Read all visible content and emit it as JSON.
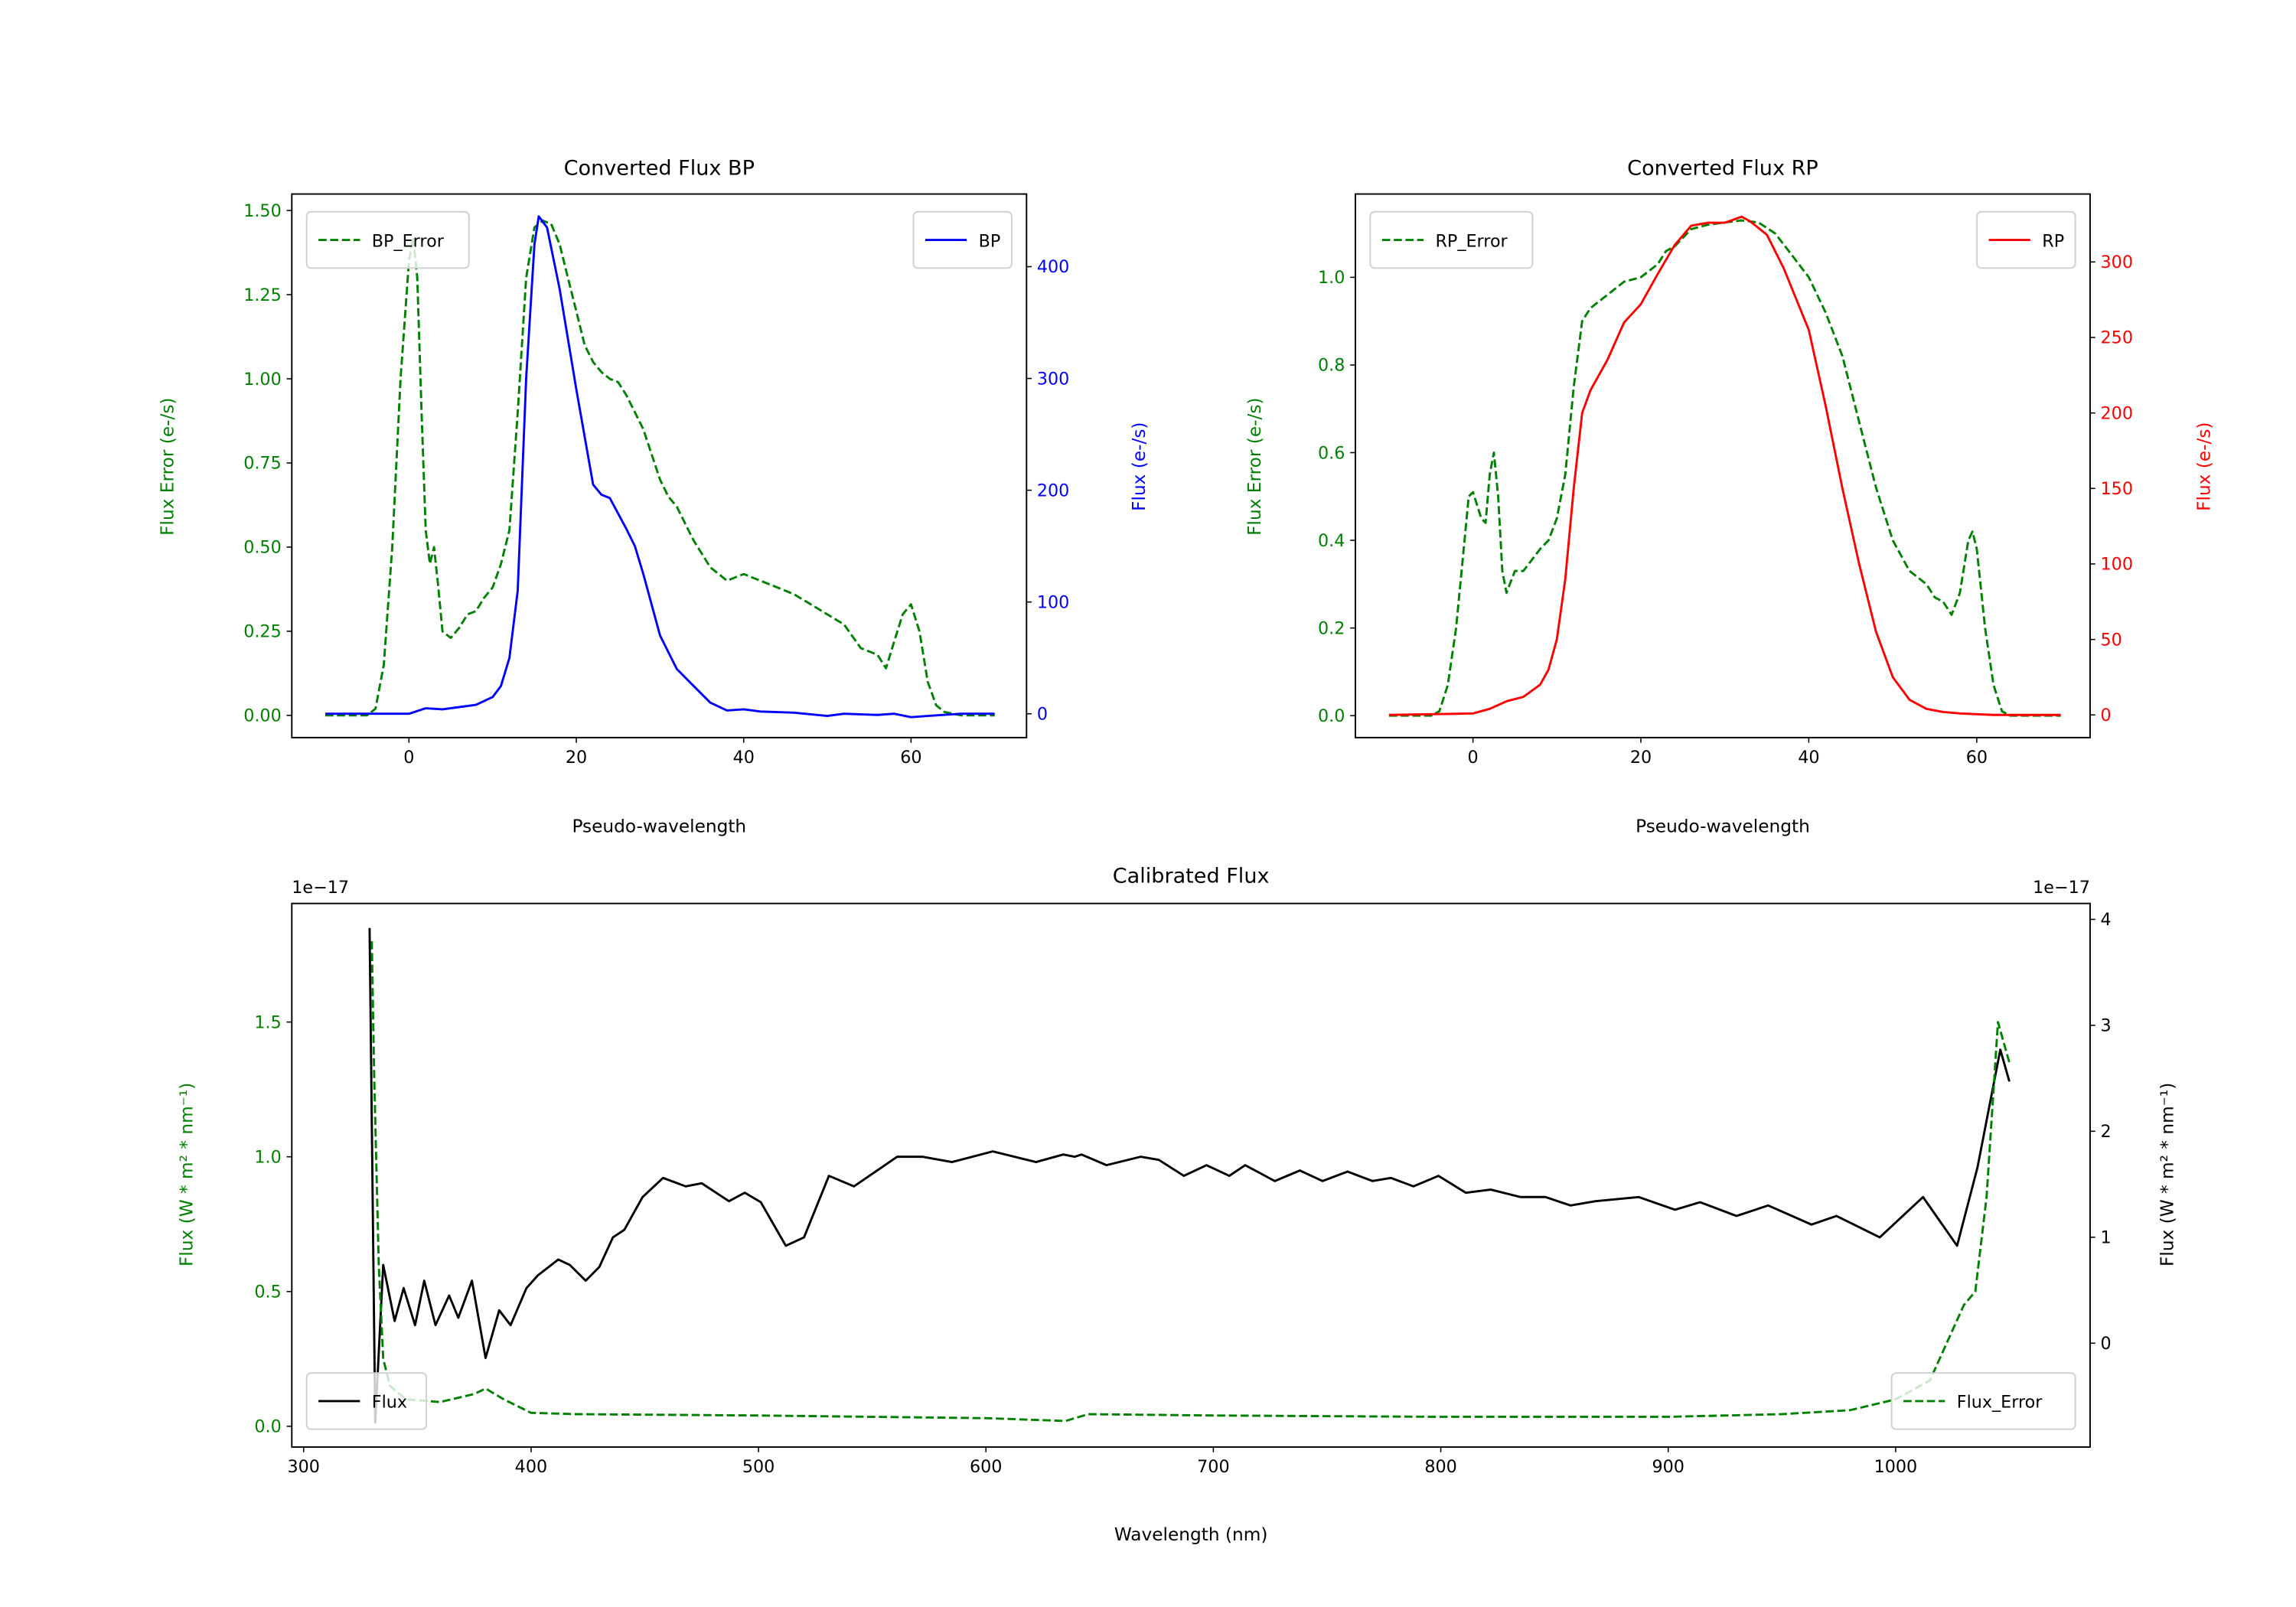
{
  "colors": {
    "error": "#008000",
    "bp": "#0000ff",
    "rp": "#ff0000",
    "flux": "#000000",
    "axis": "#000000"
  },
  "chart_data": [
    {
      "id": "bp",
      "type": "line",
      "title": "Converted Flux BP",
      "xlabel": "Pseudo-wavelength",
      "ylabel_left": "Flux Error (e-/s)",
      "ylabel_right": "Flux (e-/s)",
      "xlim": [
        -14,
        73.8
      ],
      "ylim_left": [
        -0.066,
        1.549
      ],
      "ylim_right": [
        -21.3,
        465
      ],
      "xticks": [
        0,
        20,
        40,
        60
      ],
      "xtick_labels": [
        "0",
        "20",
        "40",
        "60"
      ],
      "yticks_left": [
        0,
        0.25,
        0.5,
        0.75,
        1.0,
        1.25,
        1.5
      ],
      "ytick_labels_left": [
        "0.00",
        "0.25",
        "0.50",
        "0.75",
        "1.00",
        "1.25",
        "1.50"
      ],
      "yticks_right": [
        0,
        100,
        200,
        300,
        400
      ],
      "ytick_labels_right": [
        "0",
        "100",
        "200",
        "300",
        "400"
      ],
      "left_color": "#008000",
      "right_color": "#0000ff",
      "series": [
        {
          "name": "BP_Error",
          "axis": "left",
          "style": "dashed",
          "color": "#008000",
          "legend": "top-left",
          "x": [
            -10,
            -5,
            -4,
            -3,
            -2,
            -1,
            0,
            0.5,
            1,
            1.5,
            2,
            2.5,
            3,
            3.5,
            4,
            5,
            6,
            7,
            8,
            9,
            10,
            11,
            12,
            13,
            14,
            15,
            16,
            17,
            18,
            19,
            20,
            21,
            22,
            23,
            24,
            25,
            26,
            28,
            30,
            31,
            32,
            34,
            36,
            38,
            39,
            40,
            42,
            44,
            46,
            48,
            50,
            52,
            54,
            56,
            57,
            58,
            59,
            60,
            61,
            62,
            63,
            64,
            66,
            70
          ],
          "y": [
            0,
            0,
            0.02,
            0.15,
            0.5,
            1.0,
            1.35,
            1.42,
            1.3,
            0.9,
            0.55,
            0.45,
            0.5,
            0.38,
            0.25,
            0.23,
            0.26,
            0.3,
            0.31,
            0.35,
            0.38,
            0.45,
            0.55,
            0.9,
            1.3,
            1.45,
            1.47,
            1.46,
            1.4,
            1.3,
            1.2,
            1.1,
            1.05,
            1.02,
            1.0,
            0.99,
            0.95,
            0.85,
            0.7,
            0.65,
            0.62,
            0.52,
            0.44,
            0.4,
            0.41,
            0.42,
            0.4,
            0.38,
            0.36,
            0.33,
            0.3,
            0.27,
            0.2,
            0.18,
            0.14,
            0.22,
            0.3,
            0.33,
            0.25,
            0.1,
            0.03,
            0.01,
            0,
            0
          ]
        },
        {
          "name": "BP",
          "axis": "right",
          "style": "solid",
          "color": "#0000ff",
          "legend": "top-right",
          "x": [
            -10,
            -4,
            0,
            2,
            4,
            6,
            8,
            10,
            11,
            12,
            13,
            14,
            15,
            15.5,
            16.5,
            18,
            20,
            22,
            23,
            24,
            26,
            27,
            28,
            30,
            32,
            34,
            36,
            38,
            40,
            42,
            46,
            50,
            52,
            56,
            58,
            60,
            62,
            66,
            70
          ],
          "y": [
            0,
            0,
            0,
            5,
            4,
            6,
            8,
            15,
            25,
            50,
            110,
            300,
            420,
            445,
            435,
            380,
            290,
            205,
            196,
            193,
            165,
            150,
            125,
            70,
            40,
            25,
            10,
            3,
            4,
            2,
            1,
            -2,
            0,
            -1,
            0,
            -3,
            -2,
            0,
            0
          ]
        }
      ]
    },
    {
      "id": "rp",
      "type": "line",
      "title": "Converted Flux RP",
      "xlabel": "Pseudo-wavelength",
      "ylabel_left": "Flux Error (e-/s)",
      "ylabel_right": "Flux (e-/s)",
      "xlim": [
        -14,
        73.5
      ],
      "ylim_left": [
        -0.05,
        1.19
      ],
      "ylim_right": [
        -15,
        345
      ],
      "xticks": [
        0,
        20,
        40,
        60
      ],
      "xtick_labels": [
        "0",
        "20",
        "40",
        "60"
      ],
      "yticks_left": [
        0,
        0.2,
        0.4,
        0.6,
        0.8,
        1.0
      ],
      "ytick_labels_left": [
        "0.0",
        "0.2",
        "0.4",
        "0.6",
        "0.8",
        "1.0"
      ],
      "yticks_right": [
        0,
        50,
        100,
        150,
        200,
        250,
        300
      ],
      "ytick_labels_right": [
        "0",
        "50",
        "100",
        "150",
        "200",
        "250",
        "300"
      ],
      "left_color": "#008000",
      "right_color": "#ff0000",
      "series": [
        {
          "name": "RP_Error",
          "axis": "left",
          "style": "dashed",
          "color": "#008000",
          "legend": "top-left",
          "x": [
            -10,
            -5,
            -4,
            -3,
            -2,
            -1,
            -0.5,
            0,
            1,
            1.5,
            2,
            2.5,
            3,
            3.5,
            4,
            5,
            6,
            8,
            9,
            10,
            11,
            12,
            13,
            14,
            16,
            18,
            20,
            22,
            23,
            24,
            26,
            28,
            30,
            32,
            34,
            36,
            38,
            40,
            42,
            44,
            46,
            48,
            50,
            52,
            54,
            55,
            56,
            57,
            58,
            59,
            59.5,
            60,
            61,
            62,
            63,
            64,
            70
          ],
          "y": [
            0,
            0,
            0.01,
            0.07,
            0.2,
            0.4,
            0.5,
            0.51,
            0.45,
            0.44,
            0.55,
            0.6,
            0.5,
            0.33,
            0.28,
            0.33,
            0.33,
            0.38,
            0.4,
            0.45,
            0.55,
            0.75,
            0.9,
            0.93,
            0.96,
            0.99,
            1.0,
            1.03,
            1.06,
            1.07,
            1.11,
            1.12,
            1.125,
            1.13,
            1.125,
            1.1,
            1.05,
            1.0,
            0.92,
            0.82,
            0.67,
            0.52,
            0.4,
            0.33,
            0.3,
            0.27,
            0.26,
            0.23,
            0.28,
            0.4,
            0.42,
            0.38,
            0.2,
            0.07,
            0.01,
            0,
            0
          ]
        },
        {
          "name": "RP",
          "axis": "right",
          "style": "solid",
          "color": "#ff0000",
          "legend": "top-right",
          "x": [
            -10,
            0,
            2,
            4,
            6,
            8,
            9,
            10,
            11,
            12,
            13,
            14,
            16,
            18,
            20,
            22,
            24,
            26,
            28,
            30,
            32,
            33,
            35,
            37,
            40,
            42,
            44,
            46,
            48,
            50,
            52,
            54,
            56,
            58,
            62,
            70
          ],
          "y": [
            0,
            1,
            4,
            9,
            12,
            20,
            30,
            50,
            90,
            150,
            200,
            215,
            235,
            260,
            272,
            292,
            311,
            324,
            326,
            326,
            330,
            327,
            318,
            296,
            255,
            205,
            150,
            100,
            55,
            25,
            10,
            4,
            2,
            1,
            0,
            0
          ]
        }
      ]
    },
    {
      "id": "cal",
      "type": "line",
      "title": "Calibrated Flux",
      "xlabel": "Wavelength (nm)",
      "ylabel_left": "Flux (W * m² * nm⁻¹)",
      "ylabel_right": "Flux (W * m² * nm⁻¹)",
      "offset_left": "1e−17",
      "offset_right": "1e−17",
      "xlim": [
        294.8,
        1085.5
      ],
      "ylim_left": [
        -0.077,
        1.94
      ],
      "ylim_right": [
        -0.98,
        4.15
      ],
      "xticks": [
        300,
        400,
        500,
        600,
        700,
        800,
        900,
        1000
      ],
      "xtick_labels": [
        "300",
        "400",
        "500",
        "600",
        "700",
        "800",
        "900",
        "1000"
      ],
      "yticks_left": [
        0,
        0.5,
        1.0,
        1.5
      ],
      "ytick_labels_left": [
        "0.0",
        "0.5",
        "1.0",
        "1.5"
      ],
      "yticks_right": [
        0,
        1,
        2,
        3,
        4
      ],
      "ytick_labels_right": [
        "0",
        "1",
        "2",
        "3",
        "4"
      ],
      "left_color": "#008000",
      "right_color": "#000000",
      "series": [
        {
          "name": "Flux",
          "axis": "right",
          "style": "solid",
          "color": "#000000",
          "legend": "bottom-left",
          "x": [
            329,
            331.5,
            335,
            340,
            344,
            349,
            353,
            358,
            364,
            368,
            374,
            380,
            386,
            391,
            398,
            403,
            412,
            417,
            424,
            430,
            436,
            441,
            449,
            458,
            468,
            475,
            487,
            494,
            501,
            512,
            520,
            531,
            542,
            561,
            572,
            585,
            603,
            622,
            634,
            639,
            642,
            653,
            668,
            676,
            687,
            697,
            707,
            714,
            727,
            738,
            748,
            759,
            770,
            778,
            788,
            799,
            811,
            822,
            835,
            846,
            857,
            868,
            887,
            903,
            914,
            930,
            944,
            963,
            974,
            993,
            1012,
            1027,
            1036,
            1046,
            1050
          ],
          "y": [
            3.92,
            -0.75,
            0.74,
            0.21,
            0.52,
            0.17,
            0.59,
            0.17,
            0.45,
            0.24,
            0.59,
            -0.14,
            0.31,
            0.17,
            0.52,
            0.64,
            0.79,
            0.74,
            0.59,
            0.72,
            1.0,
            1.07,
            1.38,
            1.56,
            1.48,
            1.51,
            1.34,
            1.42,
            1.33,
            0.92,
            1.0,
            1.58,
            1.48,
            1.76,
            1.76,
            1.71,
            1.81,
            1.71,
            1.78,
            1.76,
            1.78,
            1.68,
            1.76,
            1.73,
            1.58,
            1.68,
            1.58,
            1.68,
            1.53,
            1.63,
            1.53,
            1.62,
            1.53,
            1.56,
            1.48,
            1.58,
            1.42,
            1.45,
            1.38,
            1.38,
            1.3,
            1.34,
            1.38,
            1.26,
            1.33,
            1.2,
            1.3,
            1.12,
            1.2,
            1.0,
            1.38,
            0.92,
            1.66,
            2.77,
            2.47
          ]
        },
        {
          "name": "Flux_Error",
          "axis": "left",
          "style": "dashed",
          "color": "#008000",
          "legend": "bottom-right",
          "x": [
            330,
            331,
            333,
            335,
            338,
            345,
            360,
            375,
            380,
            388,
            400,
            420,
            500,
            600,
            635,
            645,
            700,
            800,
            900,
            950,
            980,
            1000,
            1015,
            1022,
            1030,
            1035,
            1040,
            1045,
            1050
          ],
          "y": [
            1.8,
            1.3,
            0.6,
            0.25,
            0.15,
            0.1,
            0.09,
            0.12,
            0.14,
            0.1,
            0.05,
            0.045,
            0.04,
            0.03,
            0.02,
            0.045,
            0.04,
            0.035,
            0.035,
            0.045,
            0.06,
            0.1,
            0.17,
            0.3,
            0.45,
            0.5,
            0.85,
            1.5,
            1.35
          ]
        }
      ]
    }
  ]
}
